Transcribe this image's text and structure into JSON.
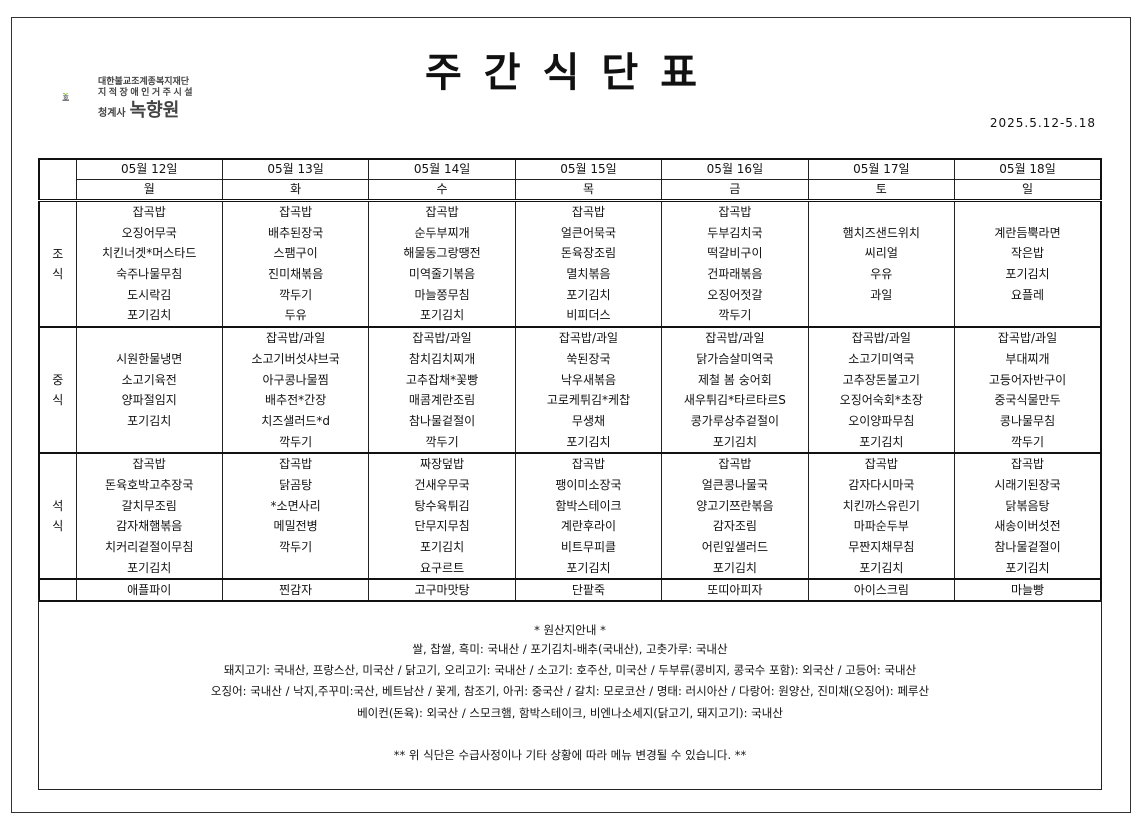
{
  "header": {
    "title": "주간식단표",
    "org_line1": "대한불교조계종복지재단",
    "org_line2": "지적장애인거주시설",
    "org_prefix": "청계사",
    "org_name": "녹향원",
    "date_range": "2025.5.12-5.18"
  },
  "days": [
    {
      "date": "05월 12일",
      "weekday": "월"
    },
    {
      "date": "05월 13일",
      "weekday": "화"
    },
    {
      "date": "05월 14일",
      "weekday": "수"
    },
    {
      "date": "05월 15일",
      "weekday": "목"
    },
    {
      "date": "05월 16일",
      "weekday": "금"
    },
    {
      "date": "05월 17일",
      "weekday": "토"
    },
    {
      "date": "05월 18일",
      "weekday": "일"
    }
  ],
  "meals": [
    {
      "label": [
        "조",
        "식"
      ],
      "days": [
        [
          "잡곡밥",
          "오징어무국",
          "치킨너겟*머스타드",
          "숙주나물무침",
          "도시락김",
          "포기김치"
        ],
        [
          "잡곡밥",
          "배추된장국",
          "스팸구이",
          "진미채볶음",
          "깍두기",
          "두유"
        ],
        [
          "잡곡밥",
          "순두부찌개",
          "해물동그랑땡전",
          "미역줄기볶음",
          "마늘쫑무침",
          "포기김치"
        ],
        [
          "잡곡밥",
          "얼큰어묵국",
          "돈육장조림",
          "멸치볶음",
          "포기김치",
          "비피더스"
        ],
        [
          "잡곡밥",
          "두부김치국",
          "떡갈비구이",
          "건파래볶음",
          "오징어젓갈",
          "깍두기"
        ],
        [
          "",
          "햄치즈샌드위치",
          "씨리얼",
          "우유",
          "과일",
          ""
        ],
        [
          "",
          "계란듬뿍라면",
          "작은밥",
          "포기김치",
          "요플레",
          ""
        ]
      ]
    },
    {
      "label": [
        "중",
        "식"
      ],
      "days": [
        [
          "",
          "시원한물냉면",
          "소고기육전",
          "양파절임지",
          "포기김치",
          ""
        ],
        [
          "잡곡밥/과일",
          "소고기버섯샤브국",
          "아구콩나물찜",
          "배추전*간장",
          "치즈샐러드*d",
          "깍두기"
        ],
        [
          "잡곡밥/과일",
          "참치김치찌개",
          "고추잡채*꽃빵",
          "매콤계란조림",
          "참나물겉절이",
          "깍두기"
        ],
        [
          "잡곡밥/과일",
          "쑥된장국",
          "낙우새볶음",
          "고로케튀김*케찹",
          "무생채",
          "포기김치"
        ],
        [
          "잡곡밥/과일",
          "닭가슴살미역국",
          "제철 봄 숭어회",
          "새우튀김*타르타르S",
          "콩가루상추겉절이",
          "포기김치"
        ],
        [
          "잡곡밥/과일",
          "소고기미역국",
          "고추장돈불고기",
          "오징어숙회*초장",
          "오이양파무침",
          "포기김치"
        ],
        [
          "잡곡밥/과일",
          "부대찌개",
          "고등어자반구이",
          "중국식물만두",
          "콩나물무침",
          "깍두기"
        ]
      ]
    },
    {
      "label": [
        "석",
        "식"
      ],
      "days": [
        [
          "잡곡밥",
          "돈육호박고추장국",
          "갈치무조림",
          "감자채햄볶음",
          "치커리겉절이무침",
          "포기김치"
        ],
        [
          "잡곡밥",
          "닭곰탕",
          "*소면사리",
          "메밀전병",
          "깍두기",
          ""
        ],
        [
          "짜장덮밥",
          "건새우무국",
          "탕수육튀김",
          "단무지무침",
          "포기김치",
          "요구르트"
        ],
        [
          "잡곡밥",
          "팽이미소장국",
          "함박스테이크",
          "계란후라이",
          "비트무피클",
          "포기김치"
        ],
        [
          "잡곡밥",
          "얼큰콩나물국",
          "양고기쯔란볶음",
          "감자조림",
          "어린잎샐러드",
          "포기김치"
        ],
        [
          "잡곡밥",
          "감자다시마국",
          "치킨까스유린기",
          "마파순두부",
          "무짠지채무침",
          "포기김치"
        ],
        [
          "잡곡밥",
          "시래기된장국",
          "닭볶음탕",
          "새송이버섯전",
          "참나물겉절이",
          "포기김치"
        ]
      ]
    }
  ],
  "snacks": [
    "애플파이",
    "찐감자",
    "고구마맛탕",
    "단팥죽",
    "또띠아피자",
    "아이스크림",
    "마늘빵"
  ],
  "notes": {
    "heading": "* 원산지안내 *",
    "lines": [
      "쌀, 찹쌀, 흑미: 국내산  / 포기김치-배추(국내산), 고춧가루: 국내산",
      "돼지고기: 국내산, 프랑스산, 미국산 / 닭고기, 오리고기: 국내산 / 소고기: 호주산, 미국산  / 두부류(콩비지, 콩국수 포함): 외국산 / 고등어: 국내산",
      "오징어: 국내산 / 낙지,주꾸미:국산, 베트남산 / 꽃게, 참조기, 아귀: 중국산 / 갈치: 모로코산 / 명태: 러시아산 / 다랑어: 원양산, 진미채(오징어): 페루산",
      "베이컨(돈육): 외국산 / 스모크햄, 함박스테이크, 비엔나소세지(닭고기, 돼지고기): 국내산"
    ],
    "disclaimer": "** 위 식단은 수급사정이나 기타 상황에 따라 메뉴 변경될 수 있습니다. **"
  },
  "colors": {
    "logo_leaf": "#8cc63f",
    "logo_body": "#5f6b73",
    "logo_accent": "#c8501e"
  }
}
